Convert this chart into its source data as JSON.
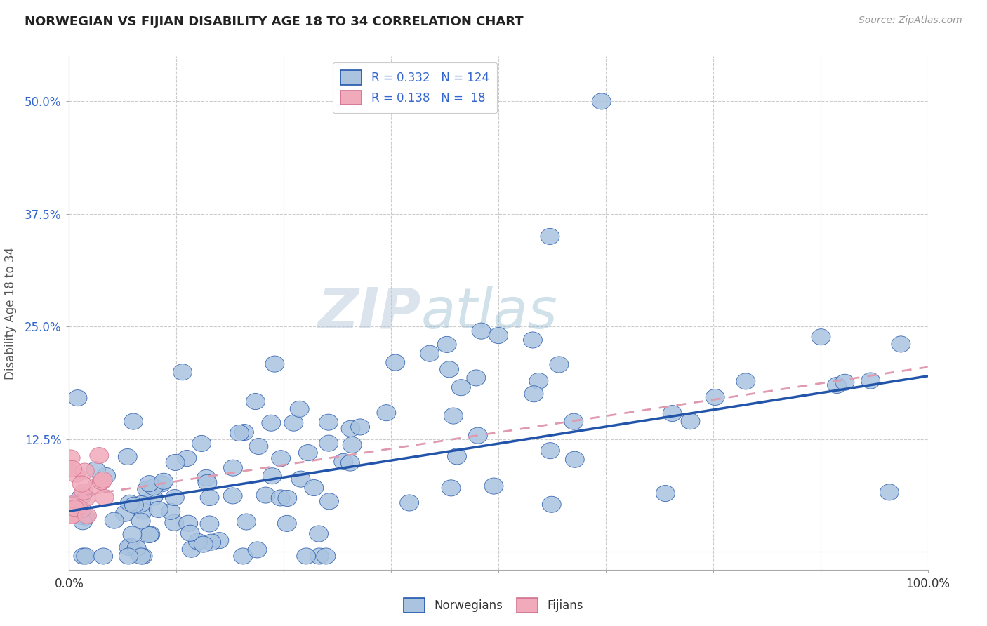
{
  "title": "NORWEGIAN VS FIJIAN DISABILITY AGE 18 TO 34 CORRELATION CHART",
  "source_text": "Source: ZipAtlas.com",
  "ylabel": "Disability Age 18 to 34",
  "watermark": "ZIPatlas",
  "xlim": [
    0,
    1.0
  ],
  "ylim": [
    -0.02,
    0.55
  ],
  "xticks": [
    0.0,
    0.125,
    0.25,
    0.375,
    0.5,
    0.625,
    0.75,
    0.875,
    1.0
  ],
  "xticklabels": [
    "0.0%",
    "",
    "",
    "",
    "",
    "",
    "",
    "",
    "100.0%"
  ],
  "yticks": [
    0.0,
    0.125,
    0.25,
    0.375,
    0.5
  ],
  "yticklabels": [
    "",
    "12.5%",
    "25.0%",
    "37.5%",
    "50.0%"
  ],
  "norwegian_R": 0.332,
  "norwegian_N": 124,
  "fijian_R": 0.138,
  "fijian_N": 18,
  "norwegian_color": "#aac4e0",
  "fijian_color": "#f0aaba",
  "norwegian_line_color": "#2255aa",
  "fijian_line_color": "#e09ab0",
  "legend_text_color": "#3366cc",
  "title_color": "#222222",
  "background_color": "#ffffff",
  "grid_color": "#cccccc",
  "norw_line_start_y": 0.045,
  "norw_line_end_y": 0.195,
  "fij_line_start_y": 0.06,
  "fij_line_end_y": 0.205
}
